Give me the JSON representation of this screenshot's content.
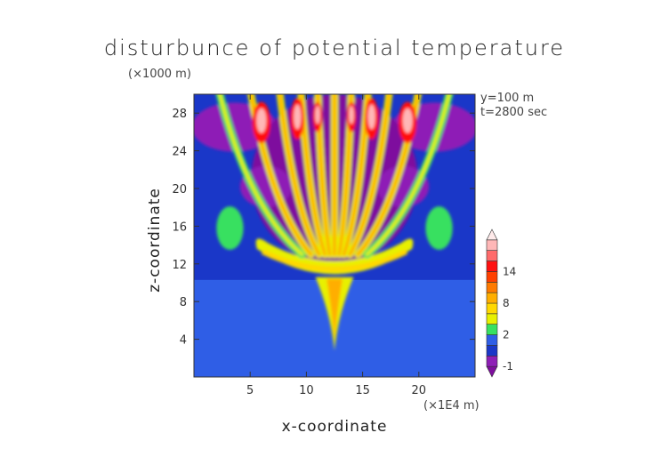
{
  "chart_data": {
    "type": "heatmap",
    "title": "disturbunce of potential temperature",
    "xlabel": "x-coordinate",
    "ylabel": "z-coordinate",
    "x_unit": "(×1E4 m)",
    "y_unit": "(×1000 m)",
    "xlim": [
      0,
      25
    ],
    "ylim": [
      0,
      30
    ],
    "x_ticks": [
      5,
      10,
      15,
      20
    ],
    "y_ticks": [
      4,
      8,
      12,
      16,
      20,
      24,
      28
    ],
    "annotations": [
      "y=100 m",
      "t=2800 sec"
    ],
    "colorbar": {
      "tick_labels": [
        "-1",
        "2",
        "8",
        "14"
      ],
      "colors": [
        "#7e0e9e",
        "#8e1fb6",
        "#1a37c8",
        "#2f5ee6",
        "#38e060",
        "#e8f000",
        "#ffd800",
        "#ffae00",
        "#ff7a00",
        "#ff4000",
        "#ff1010",
        "#ff6a6a",
        "#ffb7b7",
        "#ffeaea"
      ]
    }
  }
}
